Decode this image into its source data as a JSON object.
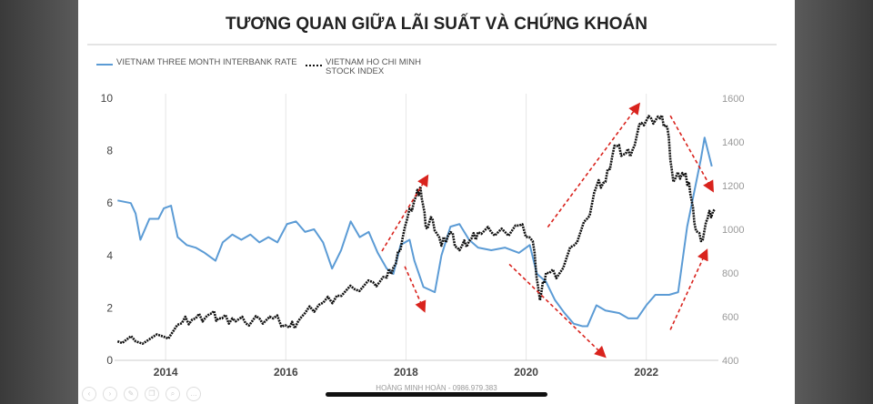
{
  "title": "TƯƠNG QUAN GIỮA LÃI SUẤT VÀ CHỨNG KHOÁN",
  "footer": "HOÀNG MINH HOÀN - 0986.979.383",
  "controls": [
    "chevron-left-icon",
    "chevron-right-icon",
    "pen-icon",
    "copy-icon",
    "zoom-icon",
    "more-icon"
  ],
  "chart_data": {
    "type": "line",
    "title": "",
    "xlim": [
      2013.15,
      2023.2
    ],
    "x_ticks": [
      "2014",
      "2016",
      "2018",
      "2020",
      "2022"
    ],
    "y_left": {
      "lim": [
        0,
        10
      ],
      "ticks": [
        "0",
        "2",
        "4",
        "6",
        "8",
        "10"
      ]
    },
    "y_right": {
      "lim": [
        400,
        1600
      ],
      "ticks": [
        "400",
        "600",
        "800",
        "1000",
        "1200",
        "1400",
        "1600"
      ]
    },
    "grid": "vertical",
    "legend_position": "top-left",
    "series": [
      {
        "name": "VIETNAM THREE MONTH INTERBANK RATE",
        "axis": "left",
        "color": "#5b9bd5",
        "style": "solid",
        "x": [
          2013.2,
          2013.42,
          2013.5,
          2013.58,
          2013.73,
          2013.88,
          2013.97,
          2014.09,
          2014.2,
          2014.35,
          2014.5,
          2014.65,
          2014.83,
          2014.95,
          2015.11,
          2015.26,
          2015.41,
          2015.56,
          2015.71,
          2015.86,
          2016.02,
          2016.17,
          2016.32,
          2016.47,
          2016.62,
          2016.77,
          2016.92,
          2017.08,
          2017.23,
          2017.38,
          2017.53,
          2017.68,
          2017.79,
          2017.91,
          2018.06,
          2018.14,
          2018.29,
          2018.48,
          2018.59,
          2018.74,
          2018.89,
          2019.05,
          2019.2,
          2019.42,
          2019.65,
          2019.88,
          2020.06,
          2020.18,
          2020.33,
          2020.48,
          2020.64,
          2020.79,
          2020.94,
          2021.02,
          2021.17,
          2021.32,
          2021.55,
          2021.7,
          2021.85,
          2022.0,
          2022.15,
          2022.38,
          2022.53,
          2022.68,
          2022.91,
          2022.97,
          2023.09
        ],
        "values": [
          6.1,
          6.0,
          5.6,
          4.6,
          5.4,
          5.4,
          5.8,
          5.9,
          4.7,
          4.4,
          4.3,
          4.1,
          3.8,
          4.5,
          4.8,
          4.6,
          4.8,
          4.5,
          4.7,
          4.5,
          5.2,
          5.3,
          4.9,
          5.0,
          4.5,
          3.5,
          4.2,
          5.3,
          4.7,
          4.9,
          4.1,
          3.5,
          3.3,
          4.4,
          4.6,
          3.8,
          2.8,
          2.6,
          4.0,
          5.1,
          5.2,
          4.6,
          4.3,
          4.2,
          4.3,
          4.1,
          4.4,
          3.3,
          3.0,
          2.3,
          1.8,
          1.4,
          1.3,
          1.3,
          2.1,
          1.9,
          1.8,
          1.6,
          1.6,
          2.1,
          2.5,
          2.5,
          2.6,
          5.1,
          7.7,
          8.5,
          7.4
        ]
      },
      {
        "name": "VIETNAM HO CHI MINH STOCK INDEX",
        "axis": "right",
        "color": "#111111",
        "style": "dotted",
        "x": [
          2013.2,
          2013.5,
          2013.97,
          2014.27,
          2014.5,
          2014.73,
          2014.88,
          2015.11,
          2015.33,
          2015.56,
          2015.79,
          2016.06,
          2016.24,
          2016.55,
          2016.85,
          2017.15,
          2017.45,
          2017.68,
          2017.83,
          2017.98,
          2018.14,
          2018.24,
          2018.33,
          2018.44,
          2018.59,
          2018.74,
          2018.89,
          2019.05,
          2019.2,
          2019.42,
          2019.65,
          2019.88,
          2020.11,
          2020.23,
          2020.33,
          2020.56,
          2020.79,
          2021.02,
          2021.17,
          2021.32,
          2021.47,
          2021.62,
          2021.77,
          2021.92,
          2022.08,
          2022.23,
          2022.35,
          2022.45,
          2022.6,
          2022.71,
          2022.8,
          2022.91,
          2023.02,
          2023.14
        ],
        "values": [
          487,
          487,
          508,
          570,
          592,
          612,
          592,
          592,
          570,
          592,
          592,
          550,
          592,
          654,
          696,
          725,
          758,
          779,
          842,
          1008,
          1133,
          1196,
          1008,
          1050,
          925,
          987,
          904,
          946,
          987,
          987,
          987,
          1017,
          946,
          675,
          800,
          800,
          925,
          1050,
          1196,
          1217,
          1383,
          1342,
          1363,
          1487,
          1508,
          1508,
          1467,
          1217,
          1258,
          1217,
          1029,
          946,
          1050,
          1092
        ]
      }
    ]
  }
}
